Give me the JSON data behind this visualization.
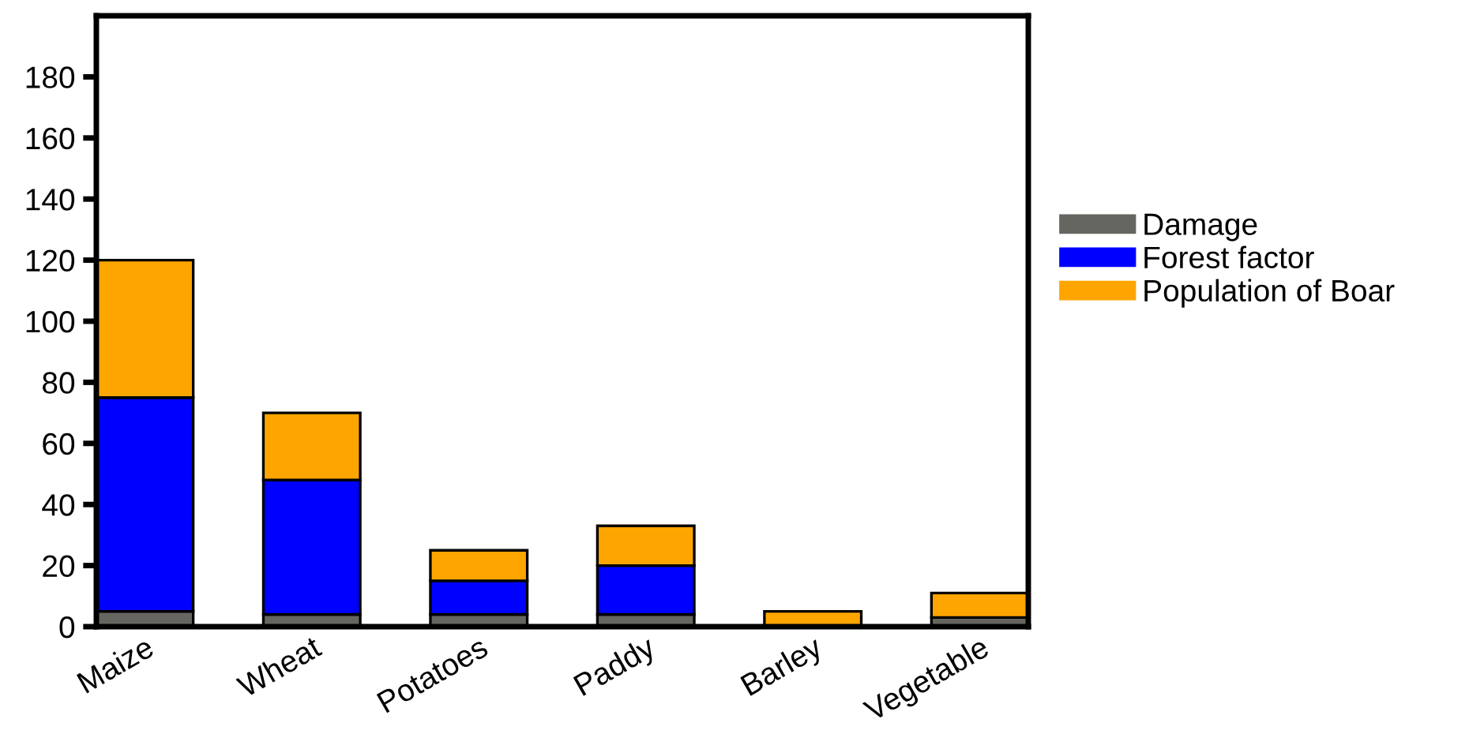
{
  "chart_data": {
    "type": "bar",
    "stacked": true,
    "categories": [
      "Maize",
      "Wheat",
      "Potatoes",
      "Paddy",
      "Barley",
      "Vegetable"
    ],
    "series": [
      {
        "name": "Damage",
        "color": "#666660",
        "values": [
          5,
          4,
          4,
          4,
          0,
          3
        ]
      },
      {
        "name": "Forest factor",
        "color": "#0000ff",
        "values": [
          70,
          44,
          11,
          16,
          0,
          0
        ]
      },
      {
        "name": "Population of Boar",
        "color": "#ffa500",
        "values": [
          45,
          22,
          10,
          13,
          5,
          8
        ]
      }
    ],
    "ylim": [
      0,
      200
    ],
    "yticks": [
      0,
      20,
      40,
      60,
      80,
      100,
      120,
      140,
      160,
      180
    ],
    "grid": false,
    "legend": "right"
  }
}
